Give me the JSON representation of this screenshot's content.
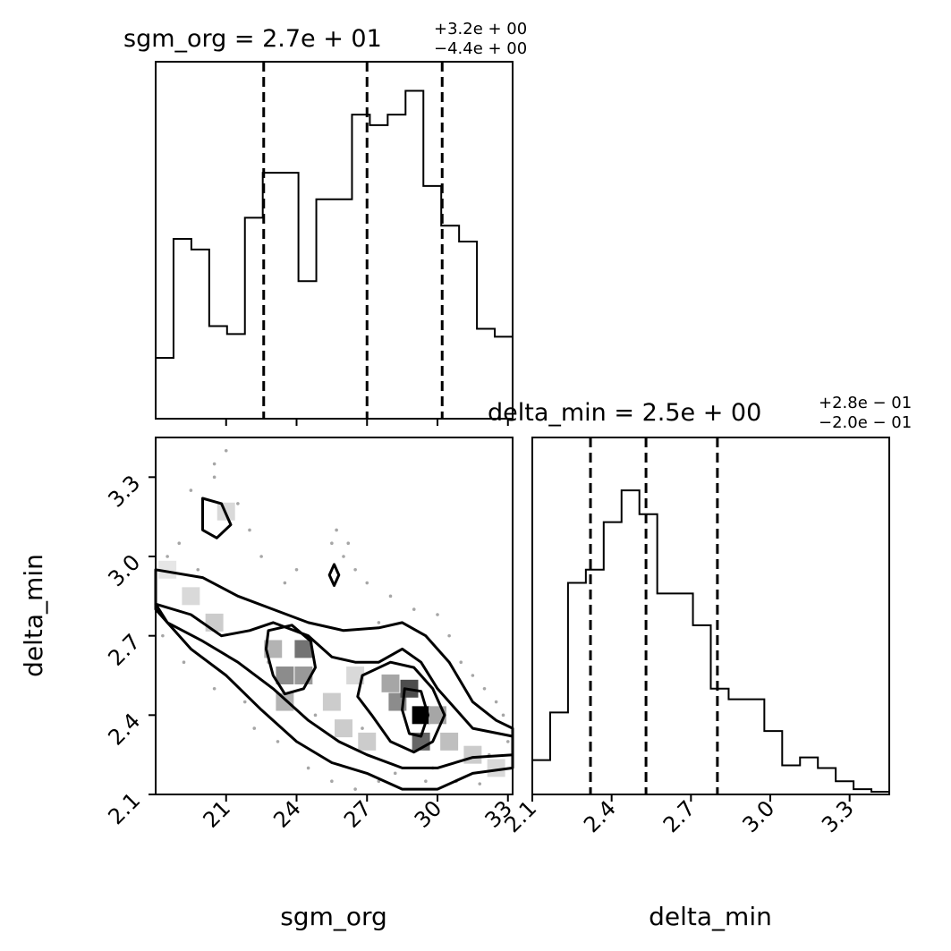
{
  "chart_data": [
    {
      "type": "histogram",
      "panel": "top-left",
      "variable": "sgm_org",
      "title": {
        "text": "sgm_org = 2.7e + 01",
        "sup": "+3.2e + 00",
        "sub": "−4.4e + 00"
      },
      "xlim": [
        18.0,
        33.2
      ],
      "ylim": [
        0,
        135
      ],
      "bin_edges": [
        18.0,
        18.76,
        19.52,
        20.28,
        21.04,
        21.8,
        22.56,
        23.32,
        24.08,
        24.84,
        25.6,
        26.36,
        27.12,
        27.88,
        28.64,
        29.4,
        30.16,
        30.92,
        31.68,
        32.44,
        33.2
      ],
      "counts": [
        23,
        68,
        64,
        35,
        32,
        76,
        93,
        93,
        52,
        83,
        83,
        115,
        111,
        115,
        124,
        88,
        73,
        67,
        34,
        31
      ],
      "quantiles": [
        22.6,
        27.0,
        30.2
      ]
    },
    {
      "type": "contour",
      "panel": "bottom-left",
      "x_variable": "sgm_org",
      "y_variable": "delta_min",
      "xlim": [
        18.0,
        33.2
      ],
      "ylim": [
        2.1,
        3.45
      ],
      "xticks": [
        "21",
        "24",
        "27",
        "30",
        "33"
      ],
      "yticks": [
        "2.1",
        "2.4",
        "2.7",
        "3.0",
        "3.3"
      ],
      "xlabel": "sgm_org",
      "ylabel": "delta_min",
      "density_cells": [
        {
          "x": 21.0,
          "y": 3.17,
          "d": 0.15
        },
        {
          "x": 18.5,
          "y": 2.95,
          "d": 0.1
        },
        {
          "x": 19.5,
          "y": 2.85,
          "d": 0.15
        },
        {
          "x": 20.5,
          "y": 2.75,
          "d": 0.2
        },
        {
          "x": 23.0,
          "y": 2.65,
          "d": 0.3
        },
        {
          "x": 23.5,
          "y": 2.55,
          "d": 0.45
        },
        {
          "x": 24.3,
          "y": 2.65,
          "d": 0.55
        },
        {
          "x": 24.3,
          "y": 2.55,
          "d": 0.4
        },
        {
          "x": 23.5,
          "y": 2.45,
          "d": 0.3
        },
        {
          "x": 25.5,
          "y": 2.45,
          "d": 0.2
        },
        {
          "x": 26.5,
          "y": 2.55,
          "d": 0.15
        },
        {
          "x": 28.0,
          "y": 2.52,
          "d": 0.35
        },
        {
          "x": 28.3,
          "y": 2.45,
          "d": 0.45
        },
        {
          "x": 28.8,
          "y": 2.5,
          "d": 0.7
        },
        {
          "x": 29.3,
          "y": 2.4,
          "d": 1.0
        },
        {
          "x": 29.3,
          "y": 2.3,
          "d": 0.6
        },
        {
          "x": 30.0,
          "y": 2.4,
          "d": 0.35
        },
        {
          "x": 30.5,
          "y": 2.3,
          "d": 0.25
        },
        {
          "x": 31.5,
          "y": 2.25,
          "d": 0.2
        },
        {
          "x": 32.5,
          "y": 2.2,
          "d": 0.15
        },
        {
          "x": 27.0,
          "y": 2.3,
          "d": 0.2
        },
        {
          "x": 26.0,
          "y": 2.35,
          "d": 0.2
        }
      ],
      "contours": [
        [
          [
            18.0,
            2.95
          ],
          [
            20.0,
            2.92
          ],
          [
            21.5,
            2.85
          ],
          [
            23.0,
            2.8
          ],
          [
            24.5,
            2.75
          ],
          [
            26.0,
            2.72
          ],
          [
            27.5,
            2.73
          ],
          [
            28.5,
            2.75
          ],
          [
            29.5,
            2.7
          ],
          [
            30.5,
            2.6
          ],
          [
            31.5,
            2.45
          ],
          [
            32.5,
            2.38
          ],
          [
            33.2,
            2.35
          ],
          [
            33.2,
            2.2
          ],
          [
            31.5,
            2.18
          ],
          [
            30.0,
            2.12
          ],
          [
            28.5,
            2.12
          ],
          [
            27.0,
            2.18
          ],
          [
            25.5,
            2.22
          ],
          [
            24.0,
            2.3
          ],
          [
            22.5,
            2.42
          ],
          [
            21.0,
            2.55
          ],
          [
            19.5,
            2.65
          ],
          [
            18.5,
            2.75
          ],
          [
            18.0,
            2.8
          ]
        ],
        [
          [
            18.0,
            2.82
          ],
          [
            19.5,
            2.78
          ],
          [
            20.8,
            2.7
          ],
          [
            22.0,
            2.72
          ],
          [
            23.0,
            2.75
          ],
          [
            24.5,
            2.7
          ],
          [
            25.5,
            2.62
          ],
          [
            26.5,
            2.6
          ],
          [
            27.5,
            2.6
          ],
          [
            28.5,
            2.65
          ],
          [
            29.3,
            2.6
          ],
          [
            30.0,
            2.5
          ],
          [
            30.8,
            2.42
          ],
          [
            31.5,
            2.35
          ],
          [
            33.2,
            2.32
          ],
          [
            33.2,
            2.25
          ],
          [
            31.5,
            2.24
          ],
          [
            30.0,
            2.2
          ],
          [
            28.5,
            2.2
          ],
          [
            27.0,
            2.25
          ],
          [
            25.8,
            2.3
          ],
          [
            24.5,
            2.38
          ],
          [
            23.0,
            2.5
          ],
          [
            21.5,
            2.6
          ],
          [
            20.0,
            2.68
          ],
          [
            18.5,
            2.75
          ]
        ],
        [
          [
            22.8,
            2.72
          ],
          [
            23.8,
            2.74
          ],
          [
            24.6,
            2.68
          ],
          [
            24.8,
            2.58
          ],
          [
            24.3,
            2.5
          ],
          [
            23.5,
            2.48
          ],
          [
            23.0,
            2.55
          ],
          [
            22.7,
            2.65
          ]
        ],
        [
          [
            26.8,
            2.55
          ],
          [
            28.0,
            2.6
          ],
          [
            29.0,
            2.58
          ],
          [
            29.8,
            2.5
          ],
          [
            30.3,
            2.4
          ],
          [
            29.8,
            2.3
          ],
          [
            29.0,
            2.26
          ],
          [
            28.0,
            2.3
          ],
          [
            27.2,
            2.4
          ],
          [
            26.6,
            2.47
          ]
        ],
        [
          [
            28.6,
            2.5
          ],
          [
            29.3,
            2.49
          ],
          [
            29.6,
            2.4
          ],
          [
            29.3,
            2.32
          ],
          [
            28.8,
            2.33
          ],
          [
            28.5,
            2.42
          ]
        ],
        [
          [
            20.0,
            3.22
          ],
          [
            20.8,
            3.2
          ],
          [
            21.2,
            3.12
          ],
          [
            20.6,
            3.07
          ],
          [
            20.0,
            3.1
          ]
        ],
        [
          [
            25.6,
            2.97
          ],
          [
            25.8,
            2.93
          ],
          [
            25.6,
            2.89
          ],
          [
            25.4,
            2.93
          ]
        ]
      ],
      "scatter_points": [
        [
          19.5,
          3.25
        ],
        [
          20.5,
          3.3
        ],
        [
          21.5,
          3.2
        ],
        [
          22.0,
          3.1
        ],
        [
          19.0,
          3.05
        ],
        [
          22.5,
          3.0
        ],
        [
          24.0,
          2.95
        ],
        [
          25.5,
          3.05
        ],
        [
          26.0,
          3.0
        ],
        [
          26.5,
          2.95
        ],
        [
          27.0,
          2.9
        ],
        [
          23.5,
          2.9
        ],
        [
          28.0,
          2.85
        ],
        [
          29.0,
          2.8
        ],
        [
          30.5,
          2.7
        ],
        [
          31.0,
          2.6
        ],
        [
          32.0,
          2.5
        ],
        [
          32.8,
          2.4
        ],
        [
          33.0,
          2.3
        ],
        [
          18.3,
          2.7
        ],
        [
          19.2,
          2.6
        ],
        [
          20.5,
          2.5
        ],
        [
          21.8,
          2.45
        ],
        [
          22.2,
          2.35
        ],
        [
          23.2,
          2.3
        ],
        [
          24.5,
          2.2
        ],
        [
          25.5,
          2.15
        ],
        [
          26.5,
          2.12
        ],
        [
          27.5,
          2.15
        ],
        [
          28.2,
          2.18
        ],
        [
          29.5,
          2.15
        ],
        [
          30.8,
          2.15
        ],
        [
          31.8,
          2.14
        ],
        [
          20.5,
          3.35
        ],
        [
          21.0,
          3.4
        ],
        [
          25.7,
          3.1
        ],
        [
          26.2,
          3.05
        ],
        [
          27.5,
          2.75
        ],
        [
          30.0,
          2.78
        ],
        [
          31.5,
          2.55
        ],
        [
          32.5,
          2.45
        ],
        [
          18.5,
          3.0
        ],
        [
          19.8,
          2.95
        ],
        [
          22.8,
          2.6
        ],
        [
          24.8,
          2.4
        ],
        [
          26.8,
          2.35
        ],
        [
          29.8,
          2.2
        ],
        [
          32.2,
          2.25
        ]
      ]
    },
    {
      "type": "histogram",
      "panel": "bottom-right",
      "variable": "delta_min",
      "title": {
        "text": "delta_min = 2.5e + 00",
        "sup": "+2.8e − 01",
        "sub": "−2.0e − 01"
      },
      "xlim": [
        2.1,
        3.45
      ],
      "ylim": [
        0,
        135
      ],
      "bin_edges": [
        2.1,
        2.1675,
        2.235,
        2.3025,
        2.37,
        2.4375,
        2.505,
        2.5725,
        2.64,
        2.7075,
        2.775,
        2.8425,
        2.91,
        2.9775,
        3.045,
        3.1125,
        3.18,
        3.2475,
        3.315,
        3.3825,
        3.45
      ],
      "counts": [
        13,
        31,
        80,
        85,
        103,
        115,
        106,
        76,
        76,
        64,
        40,
        36,
        36,
        24,
        11,
        14,
        10,
        5,
        2,
        1
      ],
      "quantiles": [
        2.32,
        2.53,
        2.8
      ],
      "xticks": [
        "2.1",
        "2.4",
        "2.7",
        "3.0",
        "3.3"
      ],
      "xlabel": "delta_min"
    }
  ]
}
